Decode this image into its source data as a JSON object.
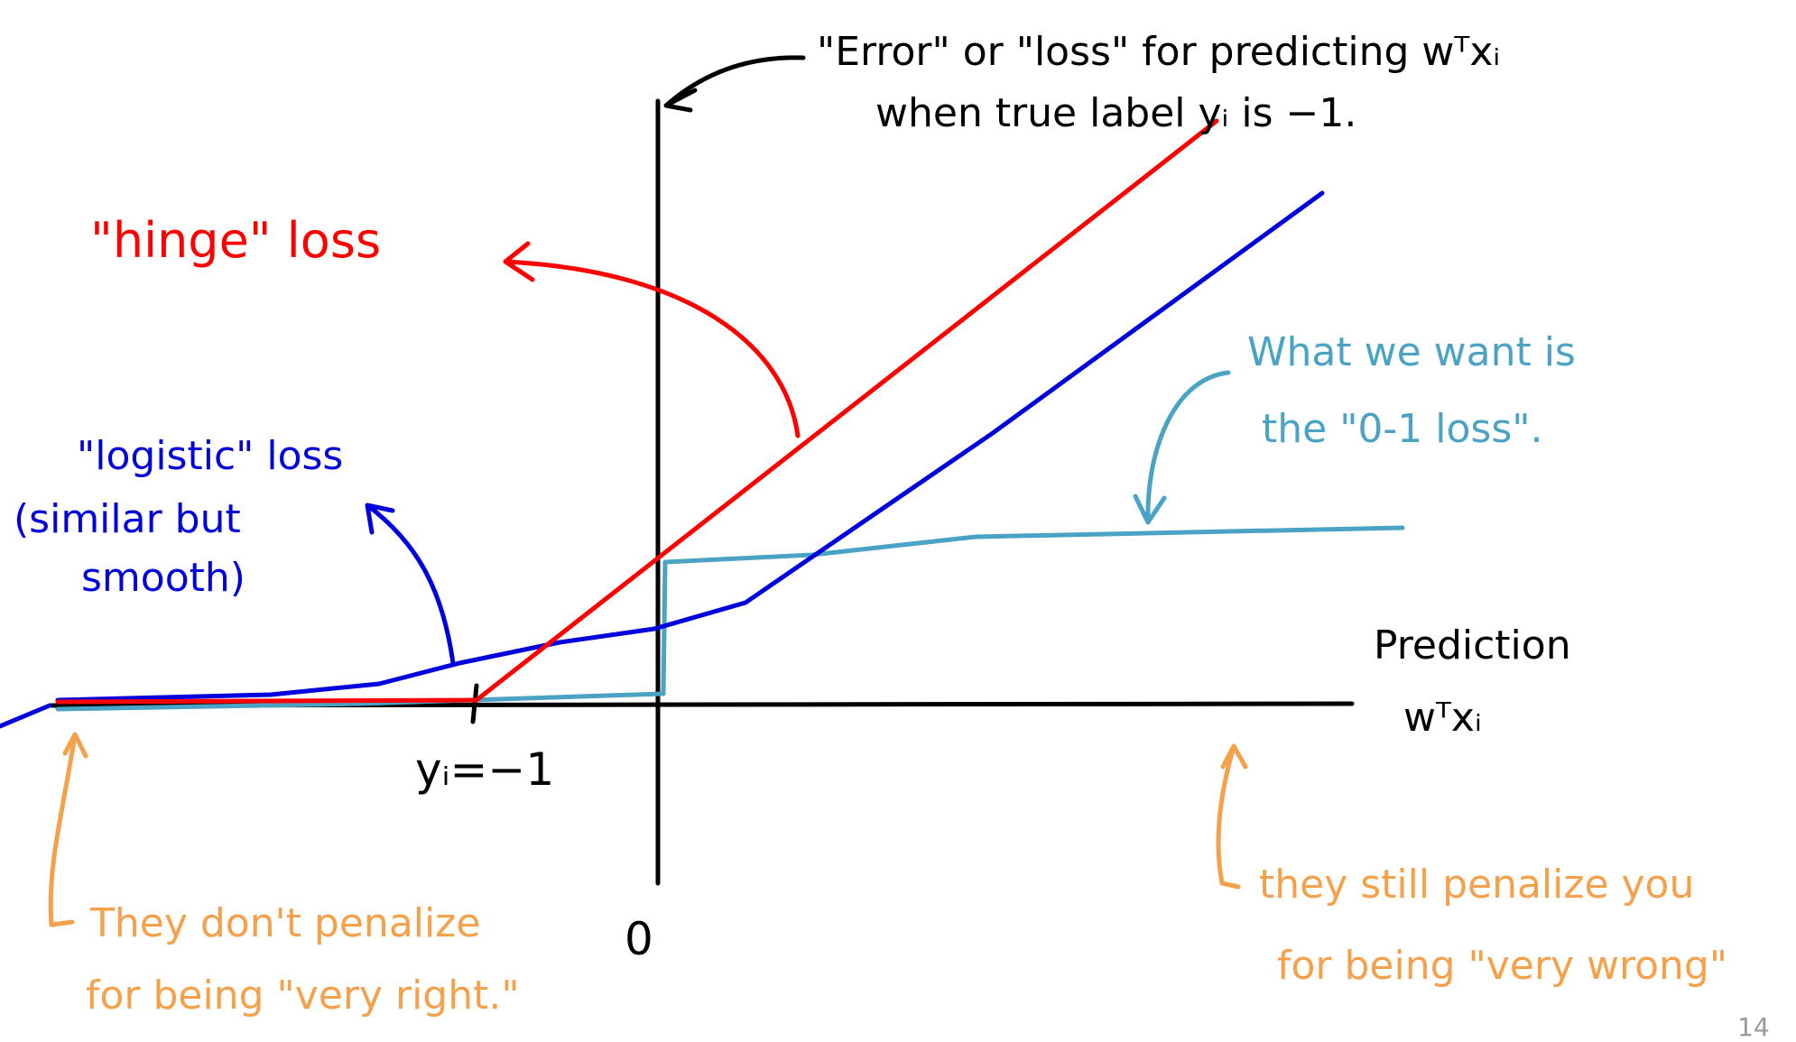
{
  "annotation_top": {
    "line1": "\"Error\" or \"loss\" for predicting wᵀxᵢ",
    "line2": "when true label yᵢ is −1."
  },
  "hinge_label": "\"hinge\" loss",
  "logistic_label": {
    "line1": "\"logistic\" loss",
    "line2": "(similar but",
    "line3": "smooth)"
  },
  "zero_one_label": {
    "line1": "What we want is",
    "line2": "the \"0-1 loss\"."
  },
  "axis_label": {
    "line1": "Prediction",
    "line2": "wᵀxᵢ"
  },
  "ticks": {
    "minus_one": "yᵢ=−1",
    "zero": "0"
  },
  "left_note": {
    "line1": "They don't penalize",
    "line2": "for being \"very right.\""
  },
  "right_note": {
    "line1": "they still penalize you",
    "line2": "for being \"very wrong\""
  },
  "page_number": "14"
}
